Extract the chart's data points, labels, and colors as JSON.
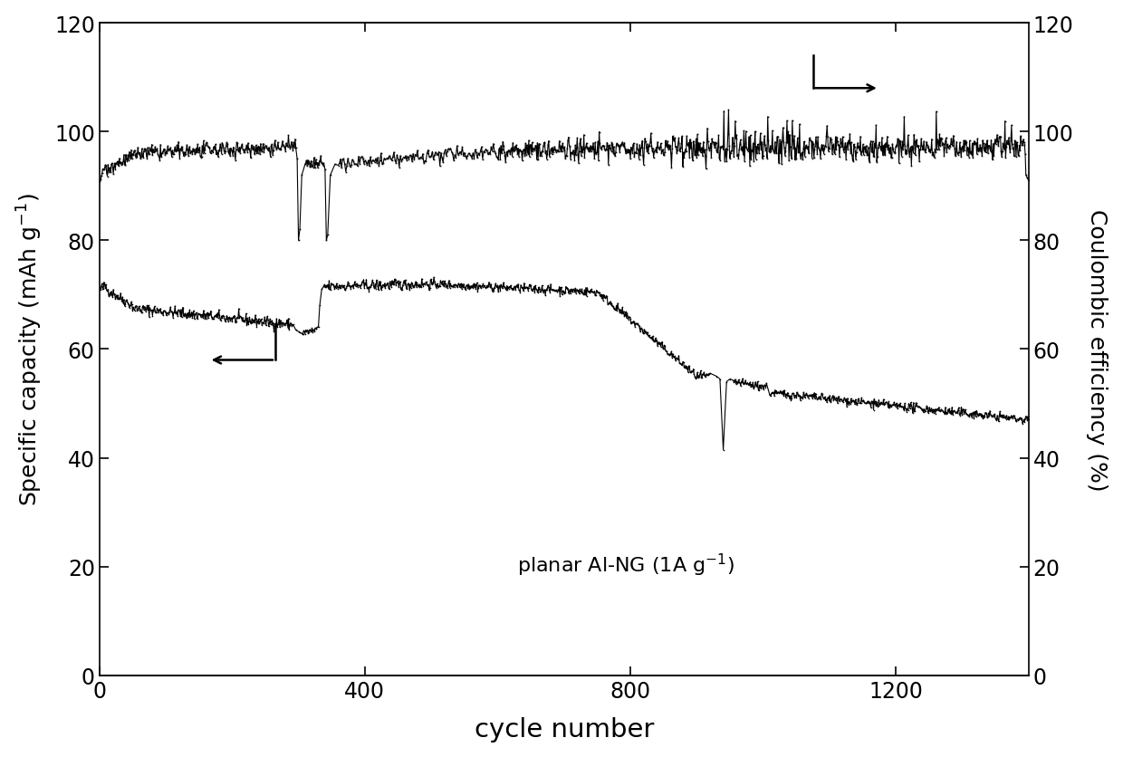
{
  "title": "",
  "xlabel": "cycle number",
  "ylabel_left": "Specific capacity (mAh g$^{-1}$)",
  "ylabel_right": "Coulombic efficiency (%)",
  "annotation": "planar Al-NG (1A g$^{-1}$)",
  "xlim": [
    0,
    1400
  ],
  "ylim_left": [
    0,
    120
  ],
  "ylim_right": [
    0,
    120
  ],
  "xticks": [
    0,
    400,
    800,
    1200
  ],
  "yticks_left": [
    0,
    20,
    40,
    60,
    80,
    100,
    120
  ],
  "yticks_right": [
    0,
    20,
    40,
    60,
    80,
    100,
    120
  ],
  "color": "#000000",
  "background": "#ffffff",
  "linewidth": 0.8,
  "markersize": 1.2
}
